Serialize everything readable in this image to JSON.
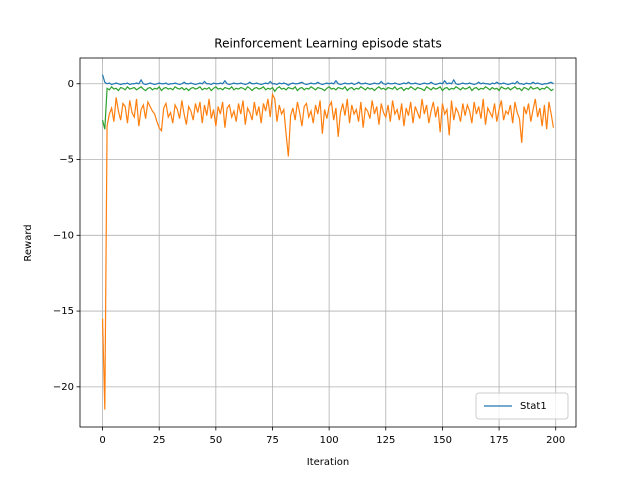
{
  "chart_data": {
    "type": "line",
    "title": "Reinforcement Learning episode stats",
    "x_label": "Iteration",
    "y_label": "Reward",
    "x": [
      0,
      1,
      2,
      3,
      4,
      5,
      6,
      7,
      8,
      9,
      10,
      11,
      12,
      13,
      14,
      15,
      16,
      17,
      18,
      19,
      20,
      21,
      22,
      23,
      24,
      25,
      26,
      27,
      28,
      29,
      30,
      31,
      32,
      33,
      34,
      35,
      36,
      37,
      38,
      39,
      40,
      41,
      42,
      43,
      44,
      45,
      46,
      47,
      48,
      49,
      50,
      51,
      52,
      53,
      54,
      55,
      56,
      57,
      58,
      59,
      60,
      61,
      62,
      63,
      64,
      65,
      66,
      67,
      68,
      69,
      70,
      71,
      72,
      73,
      74,
      75,
      76,
      77,
      78,
      79,
      80,
      81,
      82,
      83,
      84,
      85,
      86,
      87,
      88,
      89,
      90,
      91,
      92,
      93,
      94,
      95,
      96,
      97,
      98,
      99,
      100,
      101,
      102,
      103,
      104,
      105,
      106,
      107,
      108,
      109,
      110,
      111,
      112,
      113,
      114,
      115,
      116,
      117,
      118,
      119,
      120,
      121,
      122,
      123,
      124,
      125,
      126,
      127,
      128,
      129,
      130,
      131,
      132,
      133,
      134,
      135,
      136,
      137,
      138,
      139,
      140,
      141,
      142,
      143,
      144,
      145,
      146,
      147,
      148,
      149,
      150,
      151,
      152,
      153,
      154,
      155,
      156,
      157,
      158,
      159,
      160,
      161,
      162,
      163,
      164,
      165,
      166,
      167,
      168,
      169,
      170,
      171,
      172,
      173,
      174,
      175,
      176,
      177,
      178,
      179,
      180,
      181,
      182,
      183,
      184,
      185,
      186,
      187,
      188,
      189,
      190,
      191,
      192,
      193,
      194,
      195,
      196,
      197,
      198,
      199
    ],
    "series": [
      {
        "name": "Stat1",
        "color": "#1f77b4",
        "values": [
          0.6,
          0.1,
          0,
          0.05,
          -0.05,
          0,
          0.05,
          0,
          -0.05,
          0,
          0,
          0.05,
          -0.05,
          0,
          0,
          0.05,
          0,
          0.25,
          0,
          -0.05,
          0,
          0.05,
          0,
          -0.05,
          0,
          0.05,
          0,
          0,
          0.05,
          -0.05,
          0,
          0,
          0.05,
          0,
          -0.05,
          0,
          0.1,
          0,
          0,
          0.05,
          0,
          -0.05,
          0,
          0.05,
          0,
          0.15,
          0,
          0,
          -0.05,
          0.05,
          0,
          0,
          0.05,
          0,
          0.2,
          0,
          -0.05,
          0,
          0.05,
          0,
          0,
          0.05,
          0,
          -0.05,
          0,
          0.1,
          0,
          0,
          0.05,
          0,
          -0.05,
          0,
          0.05,
          0,
          0.15,
          0,
          0,
          -0.05,
          0.05,
          0,
          0.05,
          0,
          -0.1,
          0,
          0.05,
          0,
          0,
          0.05,
          0.1,
          0,
          -0.05,
          0,
          0.05,
          0,
          0,
          0.1,
          0,
          -0.05,
          0,
          0.05,
          0,
          0.05,
          0,
          0.2,
          0,
          -0.05,
          0,
          0.05,
          0,
          0,
          0.05,
          -0.05,
          0,
          0.1,
          0,
          0,
          0.05,
          0,
          -0.05,
          0,
          0.05,
          0,
          0,
          0.15,
          0,
          -0.05,
          0.05,
          0,
          0,
          0.05,
          0,
          -0.05,
          0,
          0.05,
          0,
          0.1,
          0,
          0,
          0.05,
          0,
          -0.05,
          0,
          0.05,
          0,
          0,
          0.1,
          0,
          -0.05,
          0,
          0.05,
          0,
          0.2,
          0,
          0.05,
          0,
          0.25,
          0,
          -0.05,
          0,
          0.05,
          0,
          0,
          0.05,
          0,
          -0.05,
          0,
          0.1,
          0,
          0.05,
          0,
          0,
          -0.05,
          0.05,
          0,
          0.1,
          0,
          0,
          0.05,
          0,
          -0.05,
          0,
          0.05,
          0,
          0.15,
          0,
          0,
          -0.05,
          0.05,
          0,
          0,
          0.1,
          0,
          0.05,
          0,
          -0.05,
          0,
          0,
          0.05,
          0.1,
          0
        ]
      },
      {
        "color": "#ff7f0e",
        "values": [
          -15.5,
          -21.5,
          -2.8,
          -2.0,
          -1.6,
          -2.5,
          -0.9,
          -1.8,
          -2.4,
          -1.3,
          -1.5,
          -2.6,
          -1.1,
          -1.9,
          -2.2,
          -1.0,
          -2.8,
          -1.7,
          -1.4,
          -2.3,
          -1.2,
          -1.5,
          -1.8,
          -2.0,
          -2.5,
          -2.9,
          -3.1,
          -1.6,
          -1.3,
          -2.2,
          -1.9,
          -2.6,
          -1.4,
          -1.7,
          -2.3,
          -1.1,
          -2.0,
          -2.7,
          -1.5,
          -1.8,
          -2.4,
          -1.3,
          -1.9,
          -1.2,
          -2.6,
          -1.4,
          -2.1,
          -1.0,
          -2.3,
          -1.7,
          -2.8,
          -1.5,
          -2.0,
          -1.2,
          -2.9,
          -1.6,
          -1.4,
          -2.2,
          -1.8,
          -2.5,
          -1.3,
          -2.0,
          -1.1,
          -2.7,
          -1.6,
          -1.9,
          -2.4,
          -1.2,
          -2.1,
          -1.5,
          -2.6,
          -1.3,
          -1.8,
          -1.0,
          -2.2,
          -0.7,
          -1.0,
          -2.5,
          -1.4,
          -2.0,
          -1.7,
          -3.3,
          -4.8,
          -2.1,
          -1.6,
          -2.4,
          -1.2,
          -1.9,
          -2.8,
          -1.5,
          -1.3,
          -2.2,
          -1.8,
          -2.6,
          -1.4,
          -2.0,
          -1.1,
          -3.3,
          -1.7,
          -2.3,
          -1.5,
          -1.2,
          -2.4,
          -1.6,
          -3.5,
          -1.9,
          -1.3,
          -2.1,
          -1.0,
          -2.6,
          -1.4,
          -2.0,
          -1.7,
          -2.5,
          -1.2,
          -2.9,
          -1.6,
          -1.8,
          -2.3,
          -1.1,
          -2.0,
          -1.5,
          -2.7,
          -1.3,
          -1.9,
          -2.2,
          -1.4,
          -2.5,
          -1.1,
          -2.0,
          -1.7,
          -2.4,
          -1.3,
          -2.8,
          -1.6,
          -2.1,
          -1.2,
          -2.6,
          -1.5,
          -1.9,
          -2.3,
          -1.0,
          -2.0,
          -1.4,
          -2.6,
          -1.8,
          -1.2,
          -2.2,
          -1.5,
          -3.2,
          -1.3,
          -2.0,
          -1.7,
          -3.4,
          -1.1,
          -2.4,
          -1.6,
          -1.9,
          -2.5,
          -1.3,
          -2.1,
          -1.4,
          -1.8,
          -2.6,
          -1.2,
          -2.0,
          -1.5,
          -2.3,
          -1.0,
          -2.7,
          -1.6,
          -1.9,
          -2.2,
          -1.3,
          -2.5,
          -1.7,
          -1.1,
          -2.4,
          -1.8,
          -2.0,
          -1.4,
          -2.6,
          -1.2,
          -1.9,
          -2.3,
          -3.9,
          -1.5,
          -2.0,
          -1.3,
          -2.5,
          -1.7,
          -1.0,
          -2.2,
          -1.6,
          -2.8,
          -1.4,
          -3.0,
          -1.2,
          -2.0,
          -2.9
        ]
      },
      {
        "color": "#2ca02c",
        "values": [
          -2.4,
          -3.0,
          -0.3,
          -0.4,
          -0.2,
          -0.35,
          -0.3,
          -0.45,
          -0.25,
          -0.3,
          -0.4,
          -0.2,
          -0.35,
          -0.3,
          -0.25,
          -0.4,
          -0.3,
          -0.2,
          -0.35,
          -0.45,
          -0.3,
          -0.25,
          -0.4,
          -0.3,
          -0.35,
          -0.2,
          -0.45,
          -0.3,
          -0.25,
          -0.35,
          -0.3,
          -0.4,
          -0.2,
          -0.3,
          -0.35,
          -0.25,
          -0.4,
          -0.3,
          -0.45,
          -0.3,
          -0.25,
          -0.35,
          -0.3,
          -0.2,
          -0.4,
          -0.3,
          -0.35,
          -0.25,
          -0.45,
          -0.3,
          -0.2,
          -0.35,
          -0.3,
          -0.4,
          -0.25,
          -0.3,
          -0.35,
          -0.2,
          -0.4,
          -0.3,
          -0.35,
          -0.25,
          -0.3,
          -0.4,
          -0.2,
          -0.3,
          -0.45,
          -0.3,
          -0.25,
          -0.35,
          -0.3,
          -0.2,
          -0.4,
          -0.3,
          -0.35,
          -0.25,
          -0.5,
          -0.3,
          -0.2,
          -0.35,
          -0.3,
          -0.4,
          -0.25,
          -0.3,
          -0.35,
          -0.2,
          -0.45,
          -0.3,
          -0.25,
          -0.4,
          -0.3,
          -0.35,
          -0.2,
          -0.3,
          -0.4,
          -0.25,
          -0.3,
          -0.35,
          -0.45,
          -0.3,
          -0.2,
          -0.35,
          -0.3,
          -0.4,
          -0.25,
          -0.3,
          -0.35,
          -0.2,
          -0.45,
          -0.3,
          -0.25,
          -0.4,
          -0.3,
          -0.35,
          -0.2,
          -0.3,
          -0.4,
          -0.25,
          -0.35,
          -0.3,
          -0.45,
          -0.3,
          -0.2,
          -0.35,
          -0.3,
          -0.4,
          -0.25,
          -0.3,
          -0.35,
          -0.2,
          -0.4,
          -0.3,
          -0.25,
          -0.45,
          -0.3,
          -0.35,
          -0.2,
          -0.3,
          -0.4,
          -0.25,
          -0.3,
          -0.35,
          -0.45,
          -0.2,
          -0.3,
          -0.4,
          -0.25,
          -0.35,
          -0.3,
          -0.2,
          -0.45,
          -0.3,
          -0.25,
          -0.4,
          -0.3,
          -0.35,
          -0.2,
          -0.3,
          -0.4,
          -0.25,
          -0.35,
          -0.3,
          -0.2,
          -0.45,
          -0.3,
          -0.25,
          -0.4,
          -0.3,
          -0.35,
          -0.2,
          -0.3,
          -0.4,
          -0.25,
          -0.35,
          -0.3,
          -0.45,
          -0.2,
          -0.3,
          -0.35,
          -0.25,
          -0.4,
          -0.3,
          -0.2,
          -0.35,
          -0.3,
          -0.45,
          -0.25,
          -0.3,
          -0.4,
          -0.2,
          -0.35,
          -0.3,
          -0.25,
          -0.4,
          -0.3,
          -0.35,
          -0.2,
          -0.3,
          -0.45,
          -0.35
        ]
      }
    ],
    "xlim": [
      -9.95,
      208.95
    ],
    "xticks": [
      0,
      25,
      50,
      75,
      100,
      125,
      150,
      175,
      200
    ],
    "ylim": [
      -22.65,
      1.7
    ],
    "yticks": [
      {
        "value": -20,
        "label": "−20"
      },
      {
        "value": -15,
        "label": "−15"
      },
      {
        "value": -10,
        "label": "−10"
      },
      {
        "value": -5,
        "label": "−5"
      },
      0
    ],
    "grid": true,
    "legend": "lower right"
  }
}
